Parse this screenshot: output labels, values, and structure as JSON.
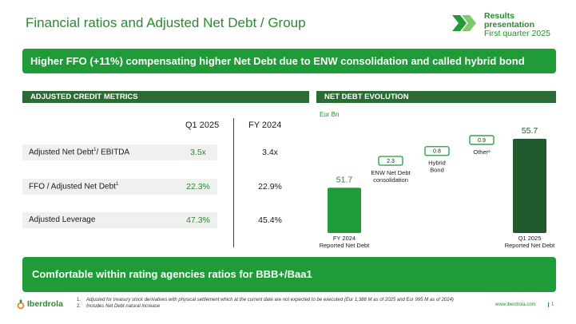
{
  "header": {
    "title": "Financial ratios and Adjusted Net Debt / Group",
    "logo_line1": "Results",
    "logo_line2": "presentation",
    "logo_line3": "First quarter 2025"
  },
  "headline": "Higher FFO (+11%) compensating higher Net Debt due to ENW consolidation and called hybrid bond",
  "metrics": {
    "section_title": "ADJUSTED CREDIT METRICS",
    "col_q1": "Q1 2025",
    "col_fy": "FY 2024",
    "rows": [
      {
        "label": "Adjusted Net Debt",
        "sup": "1",
        "label_tail": "/ EBITDA",
        "q1": "3.5x",
        "fy": "3.4x"
      },
      {
        "label": "FFO / Adjusted Net Debt",
        "sup": "1",
        "label_tail": "",
        "q1": "22.3%",
        "fy": "22.9%"
      },
      {
        "label": "Adjusted Leverage",
        "sup": "",
        "label_tail": "",
        "q1": "47.3%",
        "fy": "45.4%"
      }
    ]
  },
  "chart_data": {
    "type": "bar",
    "subtype": "waterfall",
    "section_title": "NET DEBT EVOLUTION",
    "unit_label": "Eur Bn",
    "categories": [
      "FY 2024\nReported Net Debt",
      "ENW Net Debt\nconsolidation",
      "Hybrid\nBond",
      "Other²",
      "Q1 2025\nReported  Net Debt"
    ],
    "values": [
      51.7,
      2.3,
      0.8,
      0.9,
      55.7
    ],
    "value_labels": [
      "51.7",
      "2.3",
      "0.8",
      "0.9",
      "55.7"
    ],
    "bar_kind": [
      "total",
      "delta",
      "delta",
      "delta",
      "total"
    ],
    "colors": {
      "start": "#1f9b37",
      "end": "#1e5a2b",
      "delta_border": "#1f9b37"
    },
    "ylim": [
      48,
      57
    ]
  },
  "footer": {
    "band_text": "Comfortable within rating agencies ratios for BBB+/Baa1",
    "notes": [
      {
        "num": "1.",
        "text": "Adjusted for treasury stock derivatives with physical settlement which at the current date are not expected to be executed (Eur 1,388 M as of 2025 and Eur 995 M as of 2024)"
      },
      {
        "num": "2.",
        "text": "Includes Net Debt natural increase"
      }
    ],
    "brand": "Iberdrola",
    "site": "www.iberdrola.com",
    "page": "1"
  }
}
